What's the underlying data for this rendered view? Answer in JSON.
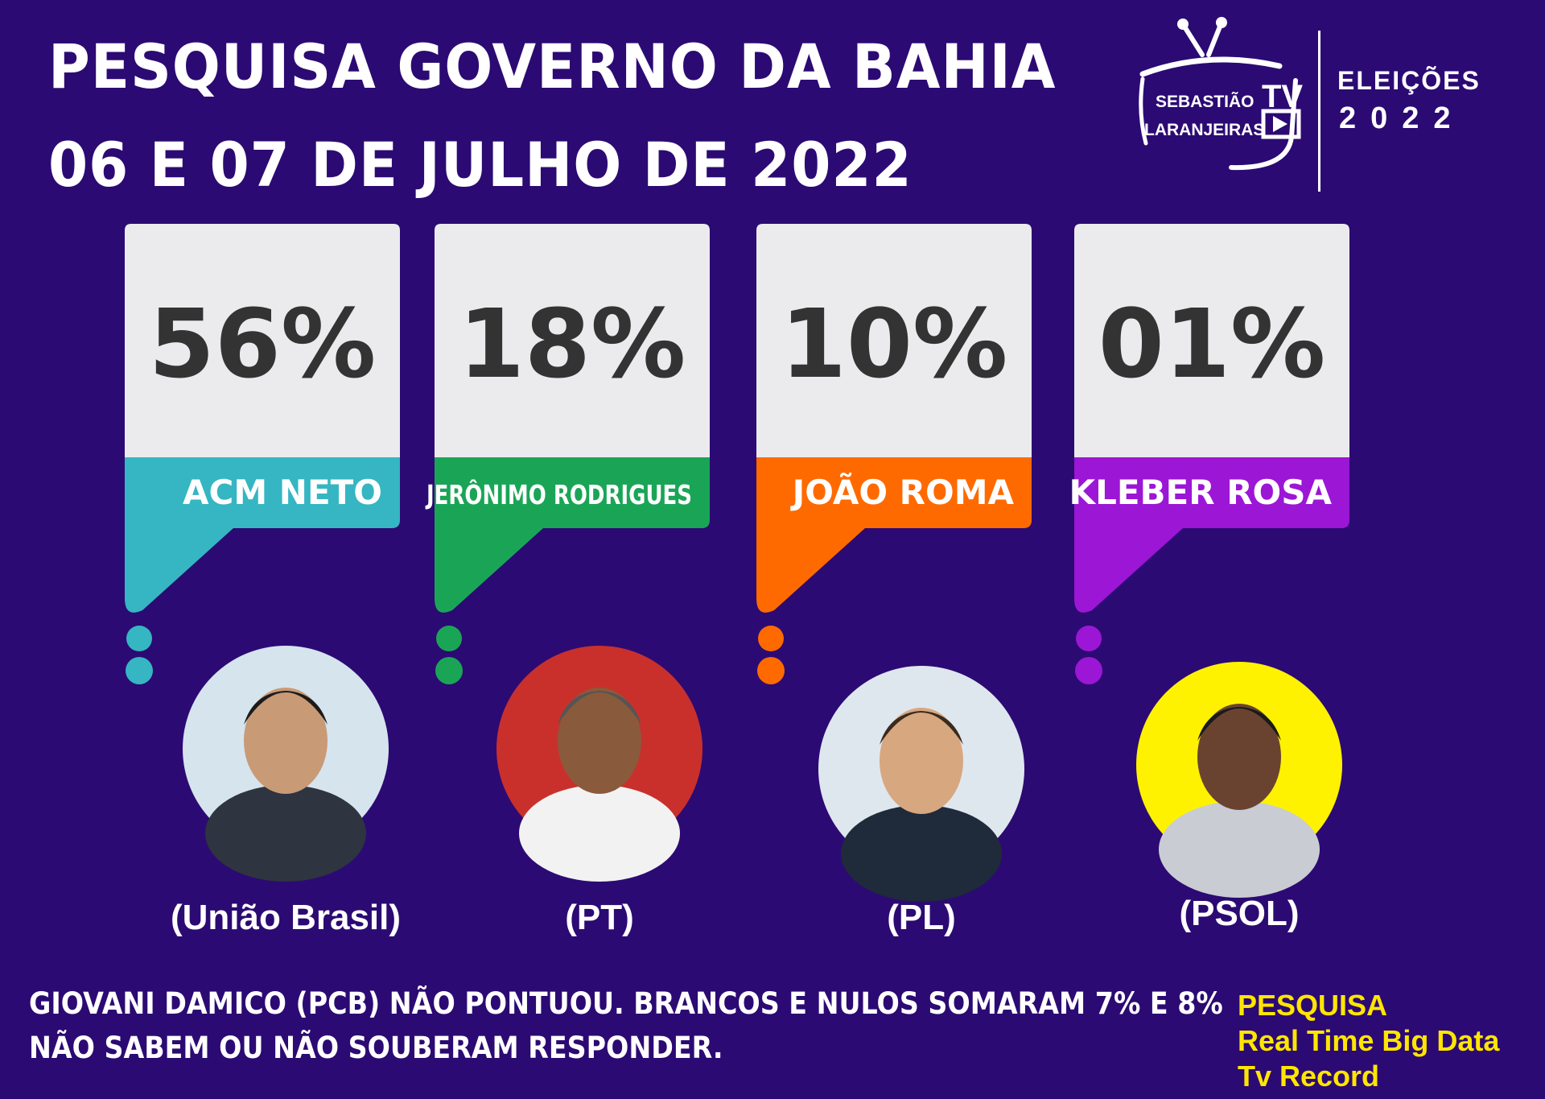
{
  "header": {
    "title_line1": "PESQUISA GOVERNO DA BAHIA",
    "title_line2": "06 E 07 DE JULHO DE 2022"
  },
  "brand": {
    "name_line1": "SEBASTIÃO",
    "name_line2": "LARANJEIRAS",
    "tv": "TV",
    "election_label": "ELEIÇÕES",
    "election_year": "2022"
  },
  "chart_data": {
    "type": "bar",
    "title": "PESQUISA GOVERNO DA BAHIA",
    "categories": [
      "ACM NETO",
      "JERÔNIMO RODRIGUES",
      "JOÃO ROMA",
      "KLEBER ROSA"
    ],
    "value_labels": [
      "56%",
      "18%",
      "10%",
      "01%"
    ],
    "values": [
      56,
      18,
      10,
      1
    ],
    "parties": [
      "(União Brasil)",
      "(PT)",
      "(PL)",
      "(PSOL)"
    ],
    "colors": [
      "#35b6c2",
      "#1aa556",
      "#ff6a00",
      "#9c16d6"
    ]
  },
  "footnote": {
    "line1": "GIOVANI DAMICO (PCB) NÃO PONTUOU. BRANCOS E NULOS SOMARAM 7% E 8%",
    "line2": "NÃO SABEM OU NÃO SOUBERAM RESPONDER."
  },
  "source": {
    "line1": "PESQUISA",
    "line2": "Real Time Big Data",
    "line3": "Tv Record"
  },
  "colors": {
    "background": "#2c0a73",
    "card": "#ebebed",
    "value_text": "#333333",
    "source_text": "#ffe600"
  }
}
